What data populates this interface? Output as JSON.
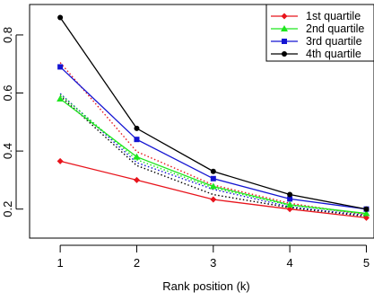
{
  "chart_data": {
    "type": "line",
    "title": "",
    "xlabel": "Rank position (k)",
    "ylabel": "",
    "x": [
      1,
      2,
      3,
      4,
      5
    ],
    "xticks": [
      "1",
      "2",
      "3",
      "4",
      "5"
    ],
    "yticks": [
      0.2,
      0.4,
      0.6,
      0.8
    ],
    "xlim": [
      0.6,
      5.1
    ],
    "ylim": [
      0.1,
      0.905
    ],
    "grid": false,
    "legend_position": "top-right",
    "series": [
      {
        "name": "1st quartile",
        "color": "#e8141c",
        "marker": "diamond",
        "values": [
          0.365,
          0.3,
          0.233,
          0.2,
          0.17
        ]
      },
      {
        "name": "2nd quartile",
        "color": "#1ee61e",
        "marker": "triangle",
        "values": [
          0.58,
          0.38,
          0.278,
          0.215,
          0.185
        ]
      },
      {
        "name": "3rd quartile",
        "color": "#1414d2",
        "marker": "square",
        "values": [
          0.69,
          0.44,
          0.305,
          0.235,
          0.2
        ]
      },
      {
        "name": "4th quartile",
        "color": "#000000",
        "marker": "circle",
        "values": [
          0.86,
          0.478,
          0.33,
          0.25,
          0.2
        ]
      }
    ],
    "dotted_series": [
      {
        "color": "#e8141c",
        "values": [
          0.705,
          0.398,
          0.283,
          0.22,
          0.18
        ]
      },
      {
        "color": "#1414d2",
        "values": [
          0.598,
          0.36,
          0.268,
          0.208,
          0.178
        ]
      },
      {
        "color": "#1ee61e",
        "values": [
          0.595,
          0.37,
          0.273,
          0.213,
          0.183
        ]
      },
      {
        "color": "#000000",
        "values": [
          0.59,
          0.35,
          0.25,
          0.205,
          0.175
        ]
      }
    ]
  }
}
